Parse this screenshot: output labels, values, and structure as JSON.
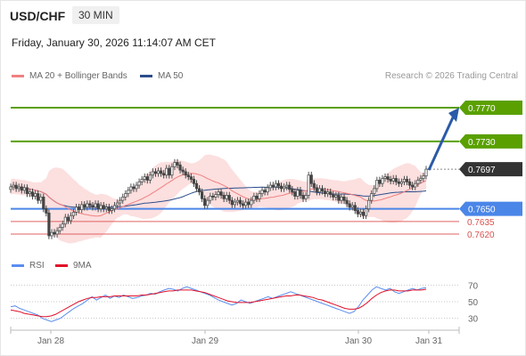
{
  "header": {
    "symbol": "USD/CHF",
    "timeframe": "30 MIN",
    "datetime": "Friday, January 30, 2026 11:14:07 AM CET"
  },
  "legend": {
    "items": [
      {
        "label": "MA 20 + Bollinger Bands",
        "color": "#f08080"
      },
      {
        "label": "MA 50",
        "color": "#2b4d8c"
      }
    ],
    "credit": "Research © 2026 Trading Central"
  },
  "rsi_legend": {
    "items": [
      {
        "label": "RSI",
        "color": "#5b8def"
      },
      {
        "label": "9MA",
        "color": "#e0102a"
      }
    ]
  },
  "colors": {
    "resistance": "#5aa000",
    "support": "#4a86e8",
    "support_minor": "#e06060",
    "current": "#333333",
    "arrow": "#2a5aa8",
    "candle_up": "#555555",
    "candle_down": "#444444",
    "band_fill": "#fbd9d9"
  },
  "chart_data": [
    {
      "type": "candlestick",
      "title": "USD/CHF",
      "x_labels": [
        "Jan 28",
        "Jan 29",
        "Jan 30",
        "Jan 31"
      ],
      "ylim": [
        0.76,
        0.779
      ],
      "levels": [
        {
          "value": 0.777,
          "label": "0.7770",
          "kind": "resistance"
        },
        {
          "value": 0.773,
          "label": "0.7730",
          "kind": "resistance"
        },
        {
          "value": 0.7697,
          "label": "0.7697",
          "kind": "current"
        },
        {
          "value": 0.765,
          "label": "0.7650",
          "kind": "support"
        },
        {
          "value": 0.7635,
          "label": "0.7635",
          "kind": "support_minor"
        },
        {
          "value": 0.762,
          "label": "0.7620",
          "kind": "support_minor"
        }
      ],
      "candles_close": [
        0.7676,
        0.7678,
        0.7674,
        0.7676,
        0.7672,
        0.7675,
        0.7668,
        0.767,
        0.7665,
        0.7668,
        0.766,
        0.7664,
        0.765,
        0.7645,
        0.7618,
        0.7622,
        0.762,
        0.7624,
        0.7628,
        0.7632,
        0.764,
        0.7636,
        0.7642,
        0.7646,
        0.7652,
        0.7649,
        0.7655,
        0.7652,
        0.7656,
        0.7654,
        0.7652,
        0.7656,
        0.765,
        0.7654,
        0.765,
        0.7652,
        0.7648,
        0.765,
        0.7654,
        0.7657,
        0.766,
        0.7664,
        0.7668,
        0.7672,
        0.7676,
        0.7674,
        0.7678,
        0.7682,
        0.7685,
        0.7688,
        0.7684,
        0.769,
        0.7694,
        0.7692,
        0.7695,
        0.7692,
        0.769,
        0.7698,
        0.769,
        0.77,
        0.7705,
        0.7702,
        0.7696,
        0.7694,
        0.769,
        0.7688,
        0.7685,
        0.768,
        0.7674,
        0.767,
        0.7662,
        0.7654,
        0.766,
        0.7665,
        0.7664,
        0.7667,
        0.767,
        0.7666,
        0.7662,
        0.7666,
        0.766,
        0.7655,
        0.7658,
        0.766,
        0.7656,
        0.7654,
        0.7658,
        0.7655,
        0.766,
        0.7665,
        0.7662,
        0.7668,
        0.7672,
        0.767,
        0.7675,
        0.7678,
        0.7676,
        0.768,
        0.7677,
        0.7674,
        0.7676,
        0.7678,
        0.7673,
        0.767,
        0.7665,
        0.7672,
        0.7666,
        0.7662,
        0.7666,
        0.769,
        0.768,
        0.7675,
        0.767,
        0.7674,
        0.7671,
        0.7668,
        0.767,
        0.7667,
        0.7664,
        0.7666,
        0.766,
        0.7664,
        0.766,
        0.7656,
        0.7652,
        0.7654,
        0.7648,
        0.7644,
        0.7646,
        0.7642,
        0.765,
        0.766,
        0.7668,
        0.7674,
        0.7684,
        0.768,
        0.7686,
        0.7688,
        0.7685,
        0.7683,
        0.7686,
        0.7682,
        0.768,
        0.7682,
        0.7685,
        0.7682,
        0.7678,
        0.7676,
        0.768,
        0.7684,
        0.7686,
        0.7689,
        0.7697
      ]
    },
    {
      "type": "line",
      "title": "RSI",
      "yticks": [
        70,
        50,
        30
      ],
      "ylim": [
        20,
        80
      ],
      "series": [
        {
          "name": "RSI",
          "values": [
            44,
            45,
            42,
            40,
            38,
            36,
            34,
            30,
            28,
            26,
            28,
            30,
            34,
            38,
            42,
            45,
            48,
            52,
            56,
            52,
            55,
            58,
            54,
            57,
            55,
            58,
            56,
            54,
            55,
            57,
            58,
            60,
            59,
            62,
            64,
            66,
            65,
            63,
            66,
            68,
            66,
            64,
            62,
            60,
            58,
            55,
            52,
            50,
            48,
            46,
            48,
            52,
            50,
            48,
            50,
            52,
            54,
            56,
            54,
            56,
            58,
            60,
            62,
            60,
            58,
            56,
            54,
            52,
            50,
            48,
            46,
            44,
            42,
            40,
            38,
            36,
            38,
            44,
            52,
            58,
            64,
            68,
            66,
            64,
            66,
            62,
            60,
            62,
            64,
            66,
            64,
            66,
            67
          ]
        },
        {
          "name": "9MA",
          "values": [
            40,
            39,
            38,
            36,
            35,
            34,
            33,
            32,
            32,
            33,
            35,
            38,
            41,
            44,
            47,
            50,
            52,
            54,
            55,
            55,
            56,
            56,
            56,
            57,
            57,
            57,
            57,
            57,
            57,
            58,
            58,
            59,
            60,
            61,
            62,
            63,
            63,
            64,
            64,
            64,
            64,
            63,
            62,
            61,
            59,
            57,
            55,
            53,
            51,
            50,
            49,
            49,
            49,
            49,
            50,
            51,
            52,
            53,
            54,
            55,
            56,
            57,
            57,
            58,
            58,
            57,
            56,
            55,
            53,
            52,
            50,
            48,
            46,
            44,
            42,
            41,
            41,
            42,
            45,
            49,
            54,
            58,
            61,
            63,
            64,
            64,
            63,
            63,
            63,
            64,
            64,
            64,
            65
          ]
        }
      ]
    }
  ]
}
